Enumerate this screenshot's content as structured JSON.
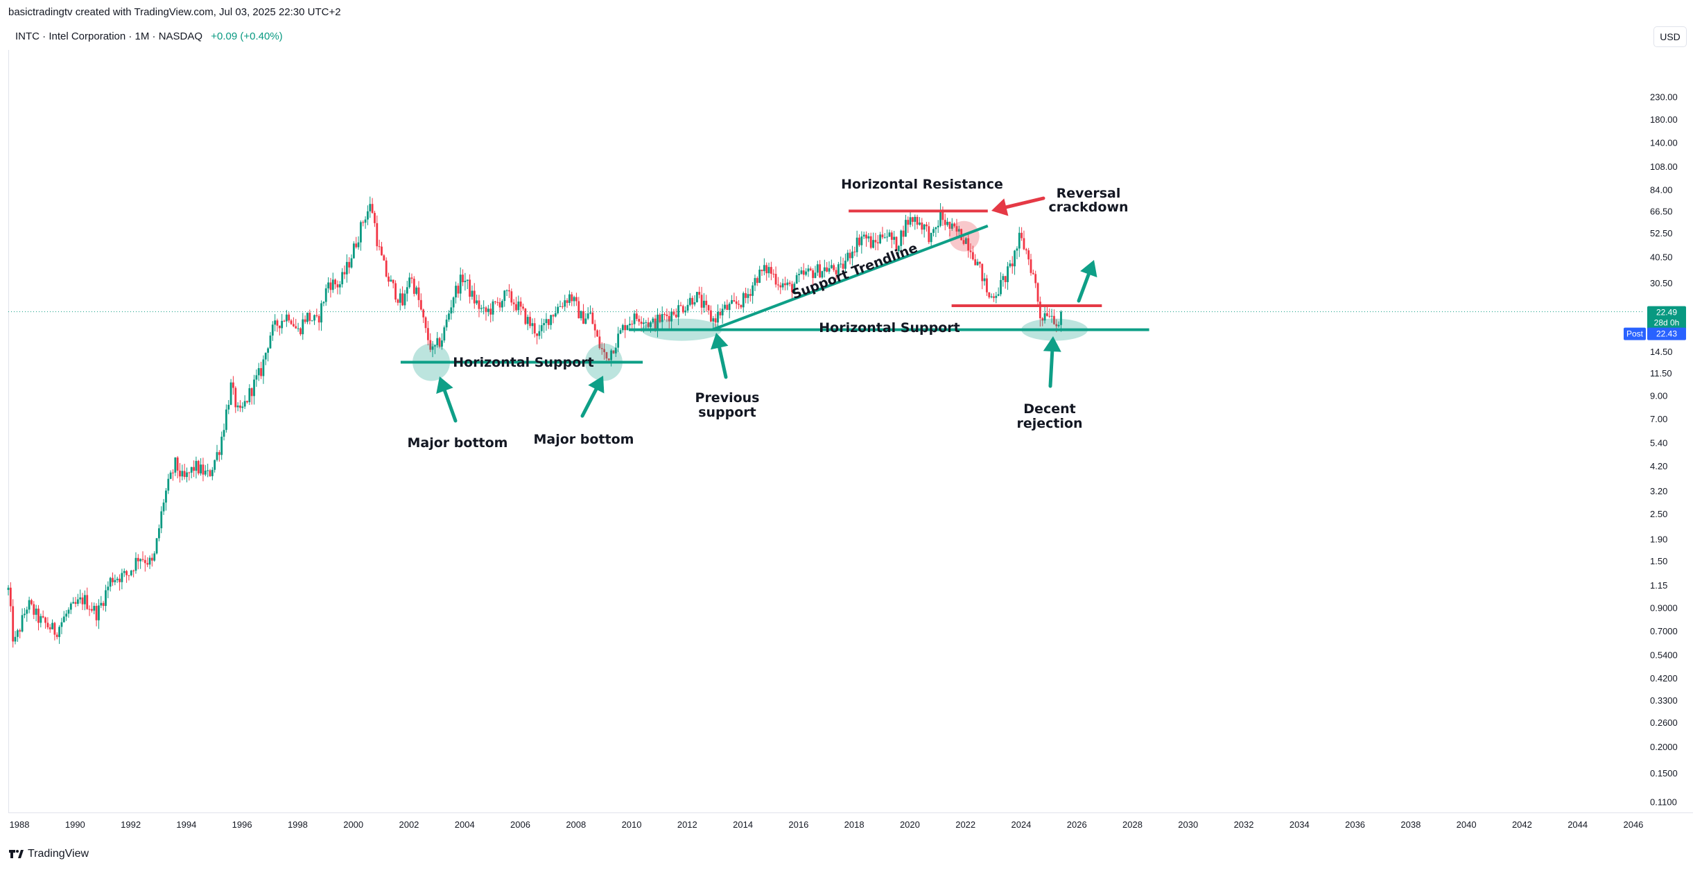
{
  "header": {
    "credit": "basictradingtv created with TradingView.com, Jul 03, 2025 22:30 UTC+2",
    "symbol_line": "INTC · Intel Corporation · 1M · NASDAQ",
    "change_text": "+0.09 (+0.40%)",
    "currency": "USD"
  },
  "footer": {
    "brand": "TradingView"
  },
  "colors": {
    "up": "#089981",
    "down": "#f23645",
    "annotation_green": "#0e9f87",
    "annotation_red": "#e53945",
    "price_line": "#089981",
    "post_label": "#2962ff"
  },
  "price_labels": {
    "last_price": "22.49",
    "countdown": "28d 0h",
    "post_tag": "Post",
    "post_price": "22.43"
  },
  "chart_data": {
    "type": "candlestick",
    "symbol": "INTC",
    "timeframe": "1M",
    "y_scale": "log",
    "ylim": [
      0.1,
      300
    ],
    "xlim": [
      1987.6,
      2046.4
    ],
    "grid": false,
    "y_ticks": [
      "230.00",
      "180.00",
      "140.00",
      "108.00",
      "84.00",
      "66.50",
      "52.50",
      "40.50",
      "30.50",
      "14.50",
      "11.50",
      "9.00",
      "7.00",
      "5.40",
      "4.20",
      "3.20",
      "2.50",
      "1.90",
      "1.50",
      "1.15",
      "0.9000",
      "0.7000",
      "0.5400",
      "0.4200",
      "0.3300",
      "0.2600",
      "0.2000",
      "0.1500",
      "0.1100"
    ],
    "x_ticks": [
      "1988",
      "1990",
      "1992",
      "1994",
      "1996",
      "1998",
      "2000",
      "2002",
      "2004",
      "2006",
      "2008",
      "2010",
      "2012",
      "2014",
      "2016",
      "2018",
      "2020",
      "2022",
      "2024",
      "2026",
      "2028",
      "2030",
      "2032",
      "2034",
      "2036",
      "2038",
      "2040",
      "2042",
      "2044",
      "2046"
    ],
    "last_close": 22.49,
    "price_path": [
      [
        1987.6,
        1.1
      ],
      [
        1987.8,
        0.6
      ],
      [
        1988.3,
        0.95
      ],
      [
        1988.7,
        0.8
      ],
      [
        1989.3,
        0.7
      ],
      [
        1989.7,
        0.85
      ],
      [
        1990.3,
        1.0
      ],
      [
        1990.8,
        0.85
      ],
      [
        1991.3,
        1.25
      ],
      [
        1991.9,
        1.3
      ],
      [
        1992.3,
        1.6
      ],
      [
        1992.8,
        1.45
      ],
      [
        1993.2,
        3.0
      ],
      [
        1993.6,
        4.3
      ],
      [
        1993.9,
        3.6
      ],
      [
        1994.3,
        4.2
      ],
      [
        1994.8,
        3.8
      ],
      [
        1995.2,
        5.2
      ],
      [
        1995.6,
        10.0
      ],
      [
        1995.9,
        7.2
      ],
      [
        1996.3,
        9.5
      ],
      [
        1996.7,
        12.0
      ],
      [
        1997.0,
        17.5
      ],
      [
        1997.3,
        20.0
      ],
      [
        1997.7,
        22.0
      ],
      [
        1998.0,
        18.0
      ],
      [
        1998.3,
        21.5
      ],
      [
        1998.7,
        20.0
      ],
      [
        1999.1,
        31.0
      ],
      [
        1999.5,
        30.0
      ],
      [
        1999.8,
        37.0
      ],
      [
        2000.1,
        48.0
      ],
      [
        2000.4,
        63.0
      ],
      [
        2000.65,
        72.0
      ],
      [
        2000.9,
        45.0
      ],
      [
        2001.2,
        33.0
      ],
      [
        2001.5,
        28.0
      ],
      [
        2001.8,
        24.0
      ],
      [
        2002.0,
        34.0
      ],
      [
        2002.3,
        27.0
      ],
      [
        2002.6,
        18.0
      ],
      [
        2002.85,
        14.5
      ],
      [
        2003.2,
        17.0
      ],
      [
        2003.6,
        27.0
      ],
      [
        2003.95,
        33.0
      ],
      [
        2004.3,
        26.0
      ],
      [
        2004.7,
        22.0
      ],
      [
        2005.1,
        24.0
      ],
      [
        2005.5,
        27.0
      ],
      [
        2005.9,
        24.0
      ],
      [
        2006.3,
        20.0
      ],
      [
        2006.7,
        17.5
      ],
      [
        2007.0,
        21.0
      ],
      [
        2007.4,
        24.0
      ],
      [
        2007.8,
        27.0
      ],
      [
        2008.2,
        21.0
      ],
      [
        2008.5,
        22.0
      ],
      [
        2008.8,
        16.0
      ],
      [
        2009.1,
        13.5
      ],
      [
        2009.4,
        16.0
      ],
      [
        2009.8,
        20.0
      ],
      [
        2010.3,
        21.5
      ],
      [
        2010.7,
        19.5
      ],
      [
        2011.1,
        21.0
      ],
      [
        2011.5,
        22.5
      ],
      [
        2011.9,
        24.0
      ],
      [
        2012.3,
        27.0
      ],
      [
        2012.7,
        22.5
      ],
      [
        2012.9,
        20.5
      ],
      [
        2013.3,
        23.0
      ],
      [
        2013.7,
        24.0
      ],
      [
        2014.1,
        26.0
      ],
      [
        2014.5,
        33.0
      ],
      [
        2014.9,
        36.0
      ],
      [
        2015.3,
        31.0
      ],
      [
        2015.7,
        29.0
      ],
      [
        2016.1,
        33.0
      ],
      [
        2016.6,
        35.0
      ],
      [
        2017.0,
        36.0
      ],
      [
        2017.5,
        35.0
      ],
      [
        2017.9,
        44.0
      ],
      [
        2018.3,
        52.0
      ],
      [
        2018.7,
        46.0
      ],
      [
        2019.1,
        54.0
      ],
      [
        2019.5,
        46.0
      ],
      [
        2019.9,
        60.0
      ],
      [
        2020.2,
        62.0
      ],
      [
        2020.5,
        57.0
      ],
      [
        2020.8,
        49.0
      ],
      [
        2021.1,
        64.0
      ],
      [
        2021.4,
        56.0
      ],
      [
        2021.7,
        53.0
      ],
      [
        2022.0,
        50.0
      ],
      [
        2022.3,
        42.0
      ],
      [
        2022.6,
        33.0
      ],
      [
        2022.85,
        26.0
      ],
      [
        2023.2,
        29.0
      ],
      [
        2023.6,
        36.0
      ],
      [
        2023.95,
        50.0
      ],
      [
        2024.2,
        43.0
      ],
      [
        2024.5,
        31.0
      ],
      [
        2024.7,
        21.0
      ],
      [
        2024.95,
        23.0
      ],
      [
        2025.2,
        21.0
      ],
      [
        2025.4,
        19.5
      ],
      [
        2025.5,
        22.49
      ]
    ],
    "annotations": {
      "texts": {
        "horizontal_resistance": "Horizontal Resistance",
        "reversal_line1": "Reversal",
        "reversal_line2": "crackdown",
        "support_trendline": "Support Trendline",
        "horizontal_support_left": "Horizontal Support",
        "horizontal_support_right": "Horizontal Support",
        "major_bottom_1": "Major bottom",
        "major_bottom_2": "Major bottom",
        "previous_support_line1": "Previous",
        "previous_support_line2": "support",
        "decent_rejection_line1": "Decent",
        "decent_rejection_line2": "rejection"
      },
      "levels": {
        "early_support_price": 13.0,
        "long_support_price": 18.5,
        "resistance_price": 67.0,
        "breakdown_level_price": 24.0,
        "trendline_start": [
          2012.9,
          18.5
        ],
        "trendline_end": [
          2022.8,
          57.0
        ]
      }
    }
  }
}
